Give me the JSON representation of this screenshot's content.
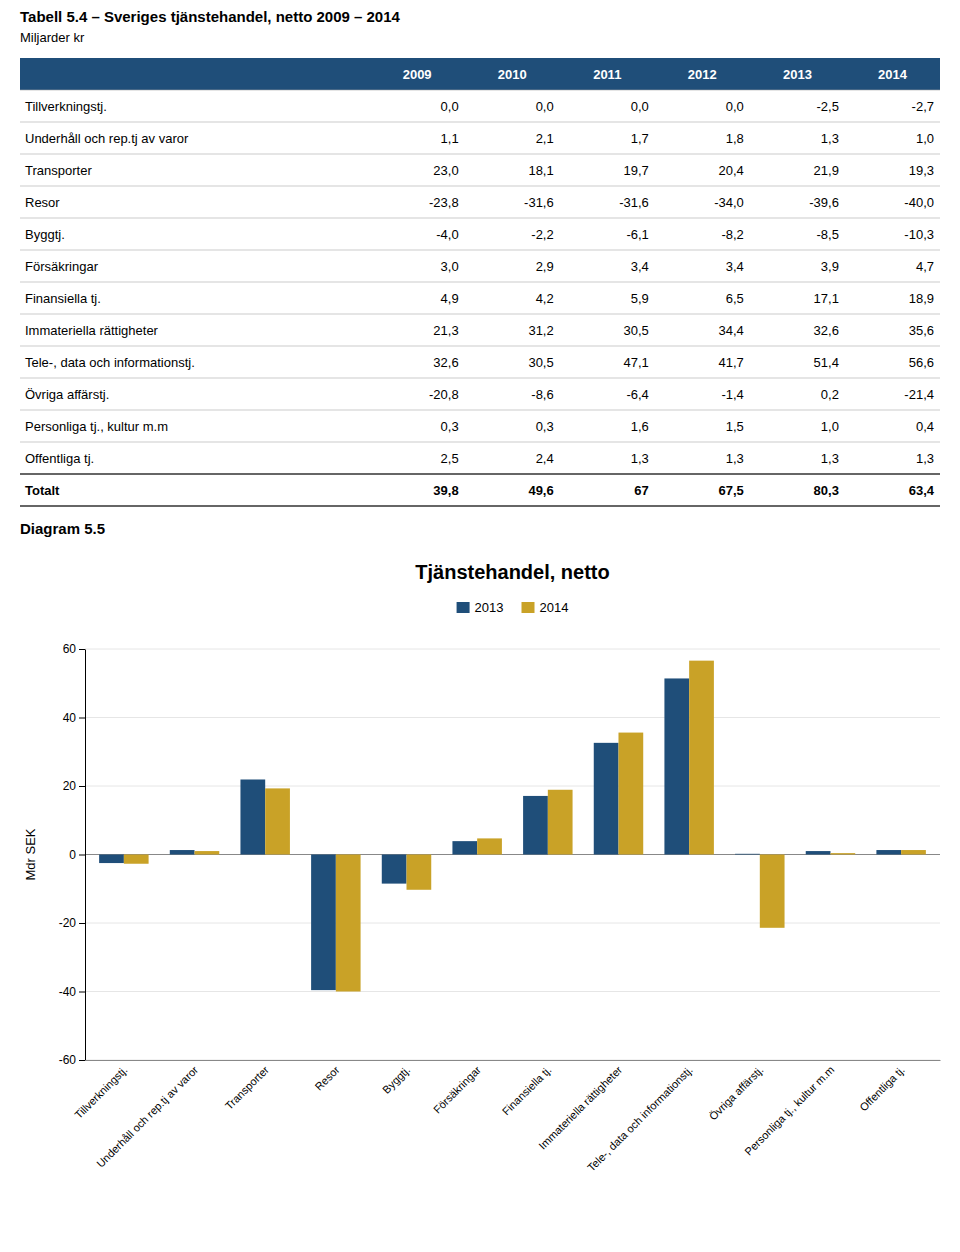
{
  "chart_data": [
    {
      "type": "table",
      "title": "Tabell 5.4 – Sveriges tjänstehandel, netto 2009 – 2014",
      "subtitle": "Miljarder kr",
      "color": "#1f4e79",
      "columns": [
        "2009",
        "2010",
        "2011",
        "2012",
        "2013",
        "2014"
      ],
      "rows": [
        {
          "label": "Tillverkningstj.",
          "cells": [
            "0,0",
            "0,0",
            "0,0",
            "0,0",
            "-2,5",
            "-2,7"
          ]
        },
        {
          "label": "Underhåll och rep.tj av varor",
          "cells": [
            "1,1",
            "2,1",
            "1,7",
            "1,8",
            "1,3",
            "1,0"
          ]
        },
        {
          "label": "Transporter",
          "cells": [
            "23,0",
            "18,1",
            "19,7",
            "20,4",
            "21,9",
            "19,3"
          ]
        },
        {
          "label": "Resor",
          "cells": [
            "-23,8",
            "-31,6",
            "-31,6",
            "-34,0",
            "-39,6",
            "-40,0"
          ]
        },
        {
          "label": "Byggtj.",
          "cells": [
            "-4,0",
            "-2,2",
            "-6,1",
            "-8,2",
            "-8,5",
            "-10,3"
          ]
        },
        {
          "label": "Försäkringar",
          "cells": [
            "3,0",
            "2,9",
            "3,4",
            "3,4",
            "3,9",
            "4,7"
          ]
        },
        {
          "label": "Finansiella tj.",
          "cells": [
            "4,9",
            "4,2",
            "5,9",
            "6,5",
            "17,1",
            "18,9"
          ]
        },
        {
          "label": "Immateriella rättigheter",
          "cells": [
            "21,3",
            "31,2",
            "30,5",
            "34,4",
            "32,6",
            "35,6"
          ]
        },
        {
          "label": "Tele-, data och informationstj.",
          "cells": [
            "32,6",
            "30,5",
            "47,1",
            "41,7",
            "51,4",
            "56,6"
          ]
        },
        {
          "label": "Övriga affärstj.",
          "cells": [
            "-20,8",
            "-8,6",
            "-6,4",
            "-1,4",
            "0,2",
            "-21,4"
          ]
        },
        {
          "label": "Personliga tj., kultur m.m",
          "cells": [
            "0,3",
            "0,3",
            "1,6",
            "1,5",
            "1,0",
            "0,4"
          ]
        },
        {
          "label": "Offentliga tj.",
          "cells": [
            "2,5",
            "2,4",
            "1,3",
            "1,3",
            "1,3",
            "1,3"
          ]
        }
      ],
      "total_row": {
        "label": "Totalt",
        "cells": [
          "39,8",
          "49,6",
          "67",
          "67,5",
          "80,3",
          "63,4"
        ]
      }
    },
    {
      "type": "bar",
      "annotations": [
        "Diagram 5.5"
      ],
      "title": "Tjänstehandel, netto",
      "categories": [
        "Tillverkningstj.",
        "Underhåll och rep.tj av varor",
        "Transporter",
        "Resor",
        "Byggtj.",
        "Försäkringar",
        "Finansiella tj.",
        "Immateriella rättigheter",
        "Tele-, data och informationstj.",
        "Övriga affärstj.",
        "Personliga tj., kultur m.m",
        "Offentliga tj."
      ],
      "series": [
        {
          "name": "2013",
          "color": "#1f4e79",
          "values": [
            -2.5,
            1.3,
            21.9,
            -39.6,
            -8.5,
            3.9,
            17.1,
            32.6,
            51.4,
            0.2,
            1.0,
            1.3
          ]
        },
        {
          "name": "2014",
          "color": "#c9a227",
          "values": [
            -2.7,
            1.0,
            19.3,
            -40.0,
            -10.3,
            4.7,
            18.9,
            35.6,
            56.6,
            -21.4,
            0.4,
            1.3
          ]
        }
      ],
      "ylabel": "Mdr SEK",
      "ylim": [
        -60,
        60
      ],
      "yticks": [
        -60,
        -40,
        -20,
        0,
        20,
        40,
        60
      ],
      "grid": true,
      "legend": "top"
    }
  ]
}
